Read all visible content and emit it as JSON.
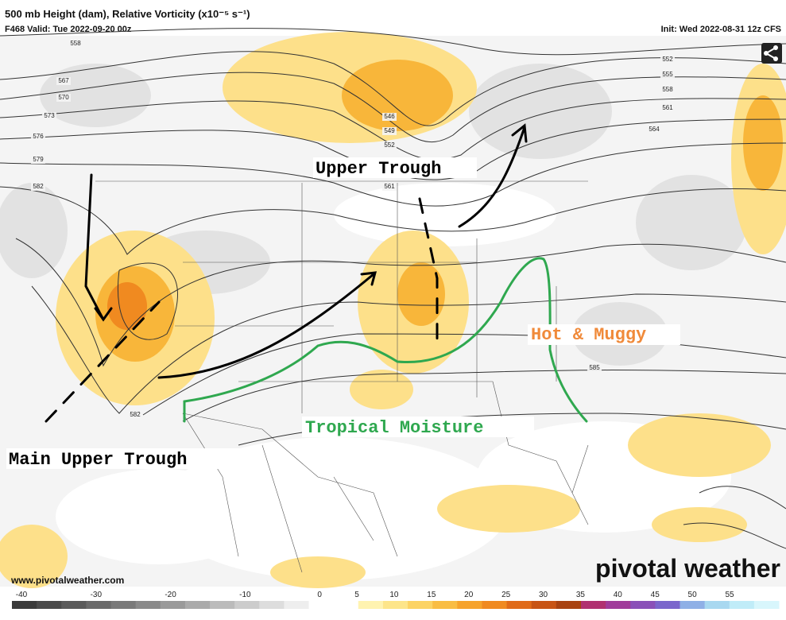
{
  "header": {
    "title": "500 mb Height (dam), Relative Vorticity (x10⁻⁵ s⁻¹)",
    "valid": "F468 Valid: Tue 2022-09-20 00z",
    "init": "Init: Wed 2022-08-31 12z CFS"
  },
  "annotations": [
    "Upper Trough",
    "Hot & Muggy",
    "Tropical Moisture",
    "Main Upper Trough"
  ],
  "contour_labels": [
    "558",
    "567",
    "570",
    "573",
    "576",
    "579",
    "582",
    "546",
    "549",
    "552",
    "561",
    "552",
    "555",
    "558",
    "561",
    "564",
    "585",
    "582"
  ],
  "footer": {
    "website": "www.pivotalweather.com",
    "brand": "pivotal weather"
  },
  "colorbar": {
    "ticks": [
      -40,
      -30,
      -20,
      -10,
      0,
      5,
      10,
      15,
      20,
      25,
      30,
      35,
      40,
      45,
      50,
      55
    ]
  }
}
